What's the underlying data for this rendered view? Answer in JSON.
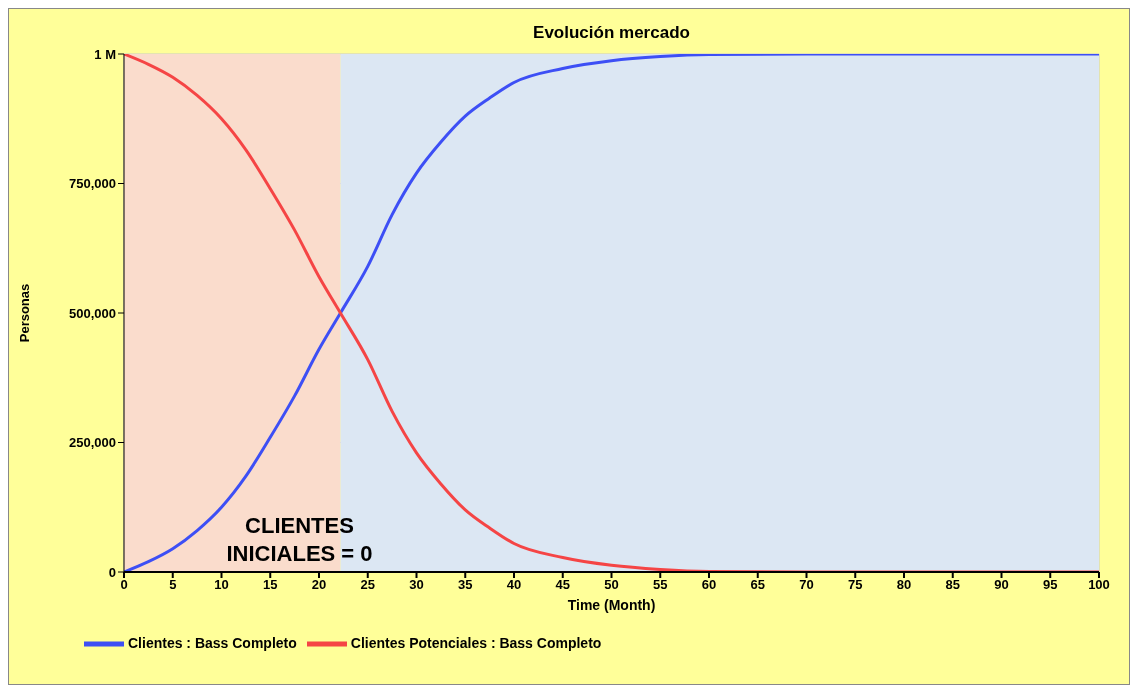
{
  "chart_data": {
    "type": "line",
    "title": "Evolución mercado",
    "xlabel": "Time (Month)",
    "ylabel": "Personas",
    "x": [
      0,
      2.5,
      5,
      7.5,
      10,
      12.5,
      15,
      17.5,
      20,
      22.2,
      25,
      27.5,
      30,
      32.5,
      35,
      37.5,
      40,
      45,
      50,
      55,
      60,
      70,
      80,
      90,
      100
    ],
    "series": [
      {
        "name": "Clientes : Bass Completo",
        "color": "#3d4ff5",
        "values": [
          0,
          20000,
          45000,
          80000,
          125000,
          185000,
          260000,
          340000,
          430000,
          500000,
          590000,
          690000,
          770000,
          830000,
          880000,
          915000,
          945000,
          972000,
          987000,
          995000,
          999000,
          1000000,
          1000000,
          1000000,
          1000000
        ]
      },
      {
        "name": "Clientes Potenciales : Bass Completo",
        "color": "#f54545",
        "values": [
          1000000,
          980000,
          955000,
          920000,
          875000,
          815000,
          740000,
          660000,
          570000,
          500000,
          410000,
          310000,
          230000,
          170000,
          120000,
          85000,
          55000,
          28000,
          13000,
          5000,
          1000,
          0,
          0,
          0,
          0
        ]
      }
    ],
    "xlim": [
      0,
      100
    ],
    "xticks": [
      0,
      5,
      10,
      15,
      20,
      25,
      30,
      35,
      40,
      45,
      50,
      55,
      60,
      65,
      70,
      75,
      80,
      85,
      90,
      95,
      100
    ],
    "ylim": [
      0,
      1000000
    ],
    "yticks": [
      0,
      {
        "value": 250000,
        "label": "250,000"
      },
      {
        "value": 500000,
        "label": "500,000"
      },
      {
        "value": 750000,
        "label": "750,000"
      },
      {
        "value": 1000000,
        "label": "1 M"
      }
    ],
    "bands": [
      {
        "axis": "x",
        "from": 0,
        "to": 22.2,
        "color": "#fadccc"
      },
      {
        "axis": "x",
        "from": 22.2,
        "to": 100,
        "color": "#dce7f3"
      }
    ],
    "annotations": [
      "CLIENTES INICIALES  = 0"
    ],
    "grid": true,
    "legend": "bottom",
    "line_style": "solid",
    "marker": "none"
  }
}
